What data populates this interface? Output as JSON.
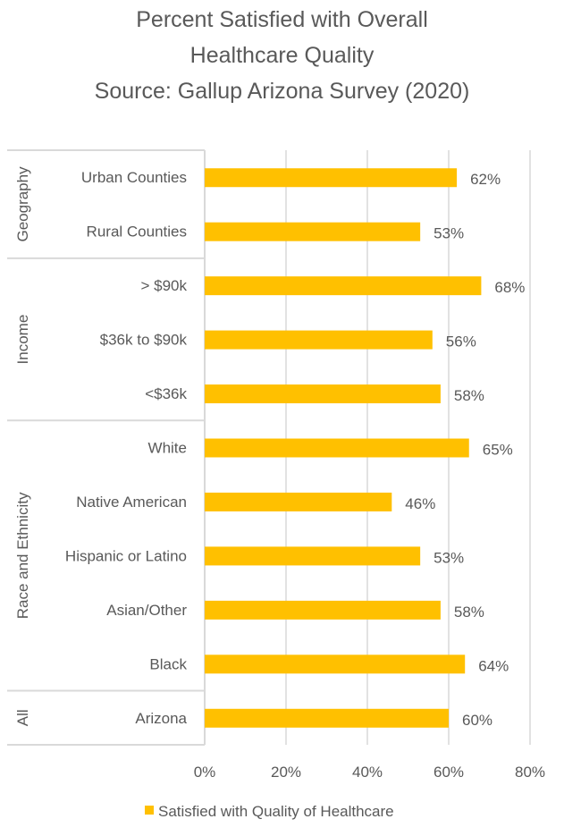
{
  "chart_data": {
    "type": "bar",
    "orientation": "horizontal",
    "title_lines": [
      "Percent Satisfied with Overall",
      "Healthcare Quality",
      "Source: Gallup Arizona Survey (2020)"
    ],
    "groups": [
      {
        "name": "Geography",
        "categories": [
          "Urban Counties",
          "Rural Counties"
        ]
      },
      {
        "name": "Income",
        "categories": [
          "> $90k",
          "$36k to $90k",
          "<$36k"
        ]
      },
      {
        "name": "Race and Ethnicity",
        "categories": [
          "White",
          "Native American",
          "Hispanic or Latino",
          "Asian/Other",
          "Black"
        ]
      },
      {
        "name": "All",
        "categories": [
          "Arizona"
        ]
      }
    ],
    "series": [
      {
        "name": "Satisfied with Quality of Healthcare",
        "color": "#FFC000",
        "values": [
          62,
          53,
          68,
          56,
          58,
          65,
          46,
          53,
          58,
          64,
          60
        ],
        "labels": [
          "62%",
          "53%",
          "68%",
          "56%",
          "58%",
          "65%",
          "46%",
          "53%",
          "58%",
          "64%",
          "60%"
        ]
      }
    ],
    "xlim": [
      0,
      80
    ],
    "xticks": [
      "0%",
      "20%",
      "40%",
      "60%",
      "80%"
    ],
    "grid": true,
    "legend_position": "bottom"
  }
}
